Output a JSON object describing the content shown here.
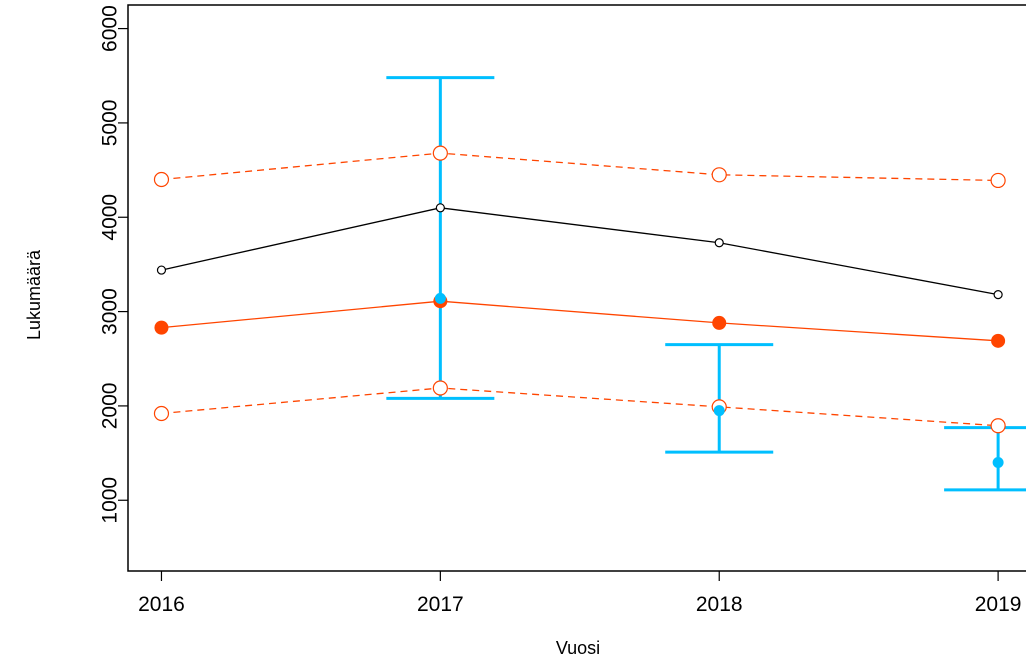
{
  "chart_data": {
    "type": "line",
    "title": "",
    "xlabel": "Vuosi",
    "ylabel": "Lukumäärä",
    "x": [
      2016,
      2017,
      2018,
      2019
    ],
    "xlim": [
      2015.88,
      2019.1
    ],
    "ylim": [
      250,
      6250
    ],
    "yticks": [
      1000,
      2000,
      3000,
      4000,
      5000,
      6000
    ],
    "xticks": [
      "2016",
      "2017",
      "2018",
      "2019"
    ],
    "grid": false,
    "series": [
      {
        "style": "solid",
        "color": "#000000",
        "marker": "open-circle",
        "values": [
          3440,
          4100,
          3730,
          3180
        ]
      },
      {
        "style": "solid",
        "color": "#ff4500",
        "marker": "filled-circle",
        "values": [
          2830,
          3110,
          2880,
          2690
        ]
      },
      {
        "style": "dashed",
        "color": "#ff4500",
        "marker": "open-circle",
        "values": [
          4400,
          4680,
          4450,
          4390
        ]
      },
      {
        "style": "dashed",
        "color": "#ff4500",
        "marker": "open-circle",
        "values": [
          1920,
          2190,
          1990,
          1790
        ]
      },
      {
        "style": "points-errorbars",
        "color": "#00bfff",
        "marker": "filled-circle",
        "x": [
          2017,
          2018,
          2019
        ],
        "values": [
          3140,
          1950,
          1400
        ],
        "lower": [
          2080,
          1510,
          1110
        ],
        "upper": [
          5480,
          2650,
          1770
        ]
      }
    ]
  }
}
